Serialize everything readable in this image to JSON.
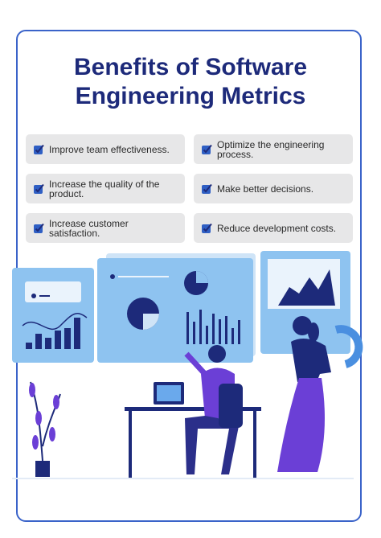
{
  "header": {
    "title_lines": [
      "Benefits of Software",
      "Engineering Metrics"
    ]
  },
  "benefits": [
    "Improve team effectiveness.",
    "Optimize the engineering process.",
    "Increase the quality of the product.",
    "Make better decisions.",
    "Increase customer satisfaction.",
    "Reduce development costs."
  ]
}
